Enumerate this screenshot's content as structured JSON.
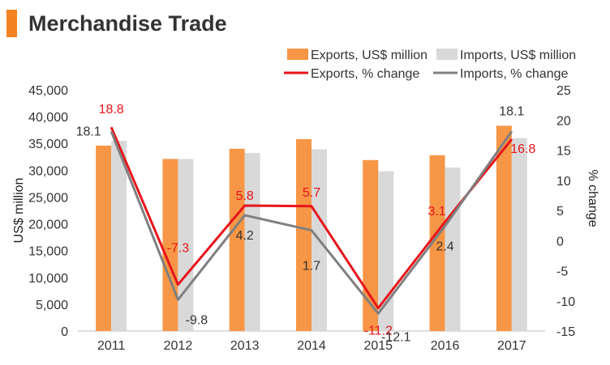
{
  "header": {
    "title": "Merchandise Trade",
    "accent_color": "#f58220"
  },
  "chart_data": {
    "type": "bar",
    "categories": [
      "2011",
      "2012",
      "2013",
      "2014",
      "2015",
      "2016",
      "2017"
    ],
    "ylabel": "US$ million",
    "y2label": "% change",
    "ylim": [
      0,
      45000
    ],
    "y2lim": [
      -15,
      25
    ],
    "yticks": [
      "0",
      "5,000",
      "10,000",
      "15,000",
      "20,000",
      "25,000",
      "30,000",
      "35,000",
      "40,000",
      "45,000"
    ],
    "y2ticks": [
      "-15",
      "-10",
      "-5",
      "0",
      "5",
      "10",
      "15",
      "20",
      "25"
    ],
    "legend": "top-right",
    "grid": false,
    "series": [
      {
        "name": "Exports, US$ million",
        "kind": "bar",
        "axis": "left",
        "color": "#f79646",
        "values": [
          34600,
          32100,
          34000,
          35800,
          31900,
          32800,
          38300
        ]
      },
      {
        "name": "Imports, US$ million",
        "kind": "bar",
        "axis": "left",
        "color": "#d9d9d9",
        "values": [
          35500,
          32100,
          33200,
          33900,
          29800,
          30500,
          36000
        ]
      },
      {
        "name": "Exports, % change",
        "kind": "line",
        "axis": "right",
        "color": "#e8141b",
        "values": [
          18.8,
          -7.3,
          5.8,
          5.7,
          -11.2,
          3.1,
          16.8
        ],
        "labels": [
          "18.8",
          "-7.3",
          "5.8",
          "5.7",
          "-11.2",
          "3.1",
          "16.8"
        ]
      },
      {
        "name": "Imports, % change",
        "kind": "line",
        "axis": "right",
        "color": "#7f7f7f",
        "values": [
          18.1,
          -9.8,
          4.2,
          1.7,
          -12.1,
          2.4,
          18.1
        ],
        "labels": [
          "18.1",
          "-9.8",
          "4.2",
          "1.7",
          "-12.1",
          "2.4",
          "18.1"
        ]
      }
    ]
  }
}
